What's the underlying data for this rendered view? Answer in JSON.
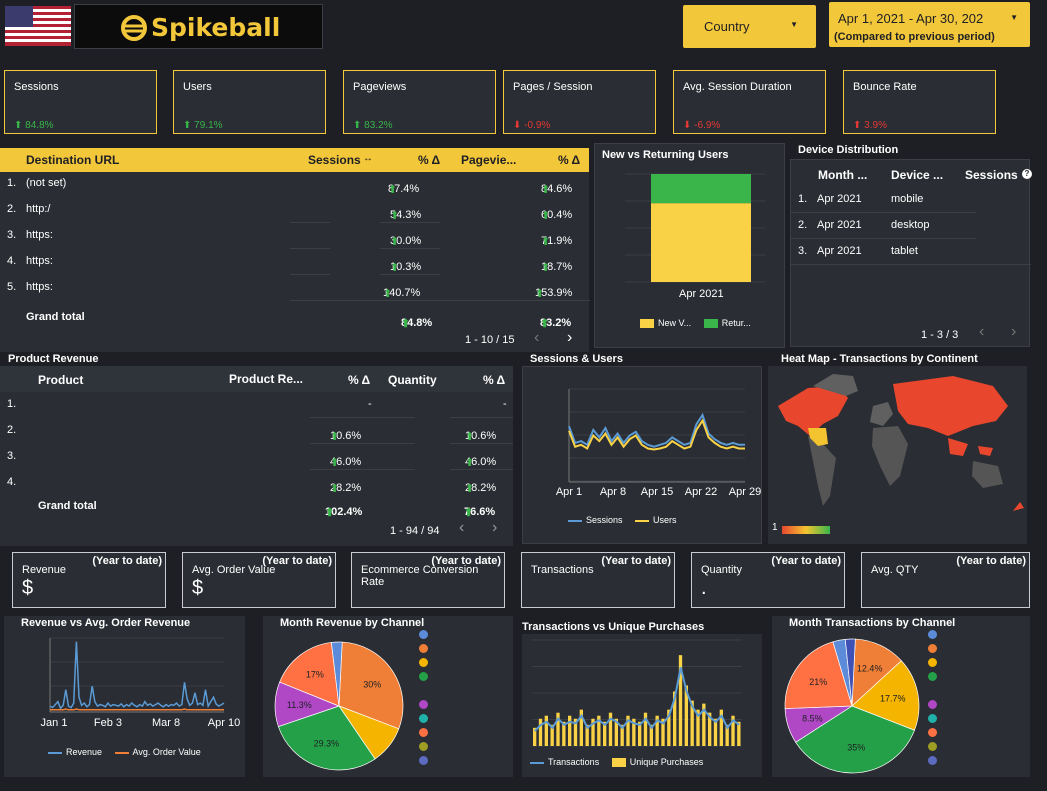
{
  "header": {
    "brand": "Spikeball",
    "country_dropdown": "Country",
    "date_range": "Apr 1, 2021 - Apr 30, 202",
    "date_compare": "(Compared to previous period)"
  },
  "kpis": [
    {
      "label": "Sessions",
      "delta": "84.8%",
      "dir": "up"
    },
    {
      "label": "Users",
      "delta": "79.1%",
      "dir": "up"
    },
    {
      "label": "Pageviews",
      "delta": "83.2%",
      "dir": "up"
    },
    {
      "label": "Pages / Session",
      "delta": "-0.9%",
      "dir": "down"
    },
    {
      "label": "Avg. Session Duration",
      "delta": "-6.9%",
      "dir": "down"
    },
    {
      "label": "Bounce Rate",
      "delta": "3.9%",
      "dir": "down"
    }
  ],
  "destination_table": {
    "headers": [
      "Destination URL",
      "Sessions",
      "% Δ",
      "Pagevie...",
      "% Δ"
    ],
    "rows": [
      {
        "n": "1.",
        "url": "(not set)",
        "d1": "87.4%",
        "d2": "84.6%"
      },
      {
        "n": "2.",
        "url": "http:/",
        "d1": "54.3%",
        "d2": "60.4%"
      },
      {
        "n": "3.",
        "url": "https:",
        "d1": "30.0%",
        "d2": "71.9%"
      },
      {
        "n": "4.",
        "url": "https:",
        "d1": "10.3%",
        "d2": "18.7%"
      },
      {
        "n": "5.",
        "url": "https:",
        "d1": "140.7%",
        "d2": "153.9%"
      }
    ],
    "grand_total_label": "Grand total",
    "grand_total_d1": "84.8%",
    "grand_total_d2": "83.2%",
    "pager": "1 - 10 / 15"
  },
  "new_vs_returning": {
    "title": "New vs Returning Users",
    "x_label": "Apr 2021",
    "legend": [
      "New V...",
      "Retur..."
    ]
  },
  "device_distribution": {
    "title": "Device Distribution",
    "headers": [
      "Month ...",
      "Device ...",
      "Sessions"
    ],
    "rows": [
      {
        "n": "1.",
        "month": "Apr 2021",
        "device": "mobile"
      },
      {
        "n": "2.",
        "month": "Apr 2021",
        "device": "desktop"
      },
      {
        "n": "3.",
        "month": "Apr 2021",
        "device": "tablet"
      }
    ],
    "pager": "1 - 3 / 3"
  },
  "product_revenue": {
    "title": "Product Revenue",
    "headers": [
      "Product",
      "Product Re...",
      "% Δ",
      "Quantity",
      "% Δ"
    ],
    "rows": [
      {
        "n": "1.",
        "d1": "-",
        "d2": "-"
      },
      {
        "n": "2.",
        "d1": "10.6%",
        "d2": "10.6%"
      },
      {
        "n": "3.",
        "d1": "46.0%",
        "d2": "46.0%"
      },
      {
        "n": "4.",
        "d1": "28.2%",
        "d2": "28.2%"
      }
    ],
    "grand_total_label": "Grand total",
    "grand_total_d1": "102.4%",
    "grand_total_d2": "76.6%",
    "pager": "1 - 94 / 94"
  },
  "sessions_users": {
    "title": "Sessions & Users",
    "legend": [
      "Sessions",
      "Users"
    ]
  },
  "heatmap": {
    "title": "Heat Map - Transactions by Continent",
    "scale_min": "1"
  },
  "ytd_cards": [
    {
      "label": "Revenue",
      "tag": "(Year to date)",
      "value": "$"
    },
    {
      "label": "Avg. Order Value",
      "tag": "(Year to date)",
      "value": "$"
    },
    {
      "label": "Ecommerce Conversion Rate",
      "tag": "(Year to date)",
      "value": ""
    },
    {
      "label": "Transactions",
      "tag": "(Year to date)",
      "value": ""
    },
    {
      "label": "Quantity",
      "tag": "(Year to date)",
      "value": "."
    },
    {
      "label": "Avg. QTY",
      "tag": "(Year to date)",
      "value": ""
    }
  ],
  "revenue_chart": {
    "title": "Revenue vs Avg. Order Revenue",
    "legend": [
      "Revenue",
      "Avg. Order Value"
    ]
  },
  "month_revenue_pie": {
    "title": "Month Revenue by Channel"
  },
  "transactions_chart": {
    "title": "Transactions vs Unique Purchases",
    "legend": [
      "Transactions",
      "Unique Purchases"
    ]
  },
  "month_transactions_pie": {
    "title": "Month Transactions by Channel"
  },
  "colors": {
    "accent": "#f3c73a",
    "panel": "#2a2d33",
    "positive": "#39b54a",
    "negative": "#e53935"
  },
  "chart_data": [
    {
      "type": "bar",
      "categories": [
        "Apr 2021"
      ],
      "series": [
        {
          "name": "New V...",
          "values": [
            73
          ]
        },
        {
          "name": "Retur...",
          "values": [
            27
          ]
        }
      ],
      "stacked": true
    },
    {
      "type": "line",
      "x_ticks": [
        "Apr 1",
        "Apr 8",
        "Apr 15",
        "Apr 22",
        "Apr 29"
      ],
      "series": [
        {
          "name": "Sessions",
          "values": [
            60,
            42,
            44,
            40,
            56,
            48,
            58,
            44,
            52,
            42,
            50,
            54,
            44,
            40,
            38,
            40,
            42,
            48,
            44,
            40,
            42,
            62,
            72,
            52,
            46,
            42,
            40,
            42,
            40,
            40
          ]
        },
        {
          "name": "Users",
          "values": [
            55,
            38,
            40,
            36,
            50,
            44,
            52,
            40,
            48,
            38,
            46,
            50,
            40,
            36,
            35,
            36,
            38,
            44,
            40,
            36,
            38,
            56,
            66,
            48,
            42,
            38,
            36,
            38,
            36,
            36
          ]
        }
      ],
      "ylim": [
        0,
        100
      ]
    },
    {
      "type": "line",
      "x_ticks": [
        "Jan 1",
        "Feb 3",
        "Mar 8",
        "Apr 10"
      ],
      "series": [
        {
          "name": "Revenue",
          "values": [
            8,
            6,
            10,
            14,
            5,
            9,
            30,
            8,
            6,
            12,
            95,
            20,
            9,
            12,
            7,
            10,
            35,
            14,
            8,
            10,
            9,
            7,
            12,
            8,
            10,
            9,
            8,
            11,
            7,
            10,
            8,
            12,
            9,
            7,
            10,
            8,
            14,
            9,
            11,
            8,
            10,
            12,
            9,
            7,
            10,
            8,
            10,
            9,
            12,
            8,
            10,
            40,
            18,
            9,
            12,
            26,
            10,
            12,
            9,
            30,
            8,
            14,
            20,
            11,
            8,
            10,
            12
          ]
        },
        {
          "name": "Avg. Order Value",
          "values": [
            3,
            3,
            3,
            3,
            3,
            3,
            4,
            3,
            3,
            3,
            4,
            3,
            3,
            3,
            3,
            3,
            3,
            3,
            3,
            3,
            3,
            3,
            3,
            3,
            3,
            3,
            3,
            3,
            3,
            3,
            3,
            3,
            3,
            3,
            3,
            3,
            3,
            3,
            3,
            3,
            3,
            3,
            3,
            3,
            3,
            3,
            3,
            3,
            3,
            3,
            3,
            4,
            3,
            3,
            3,
            3,
            3,
            3,
            3,
            3,
            3,
            3,
            3,
            3,
            3,
            3,
            3
          ]
        }
      ],
      "ylim": [
        0,
        100
      ]
    },
    {
      "type": "pie",
      "slices": [
        {
          "label": "30%",
          "value": 30,
          "color": "#ef7f36"
        },
        {
          "label": "",
          "value": 9.7,
          "color": "#f4b400"
        },
        {
          "label": "29.3%",
          "value": 29.3,
          "color": "#24a148"
        },
        {
          "label": "11.3%",
          "value": 11.3,
          "color": "#b048c6"
        },
        {
          "label": "17%",
          "value": 17,
          "color": "#ff7043"
        },
        {
          "label": "",
          "value": 2.7,
          "color": "#5b8bd9"
        }
      ]
    },
    {
      "type": "bar",
      "series": [
        {
          "name": "Unique Purchases",
          "values": [
            12,
            18,
            20,
            14,
            22,
            16,
            20,
            18,
            24,
            14,
            18,
            20,
            16,
            22,
            18,
            14,
            20,
            18,
            16,
            22,
            14,
            20,
            18,
            24,
            36,
            60,
            40,
            30,
            24,
            28,
            22,
            18,
            24,
            14,
            20,
            16
          ]
        },
        {
          "name": "Transactions",
          "values": [
            10,
            14,
            16,
            12,
            18,
            14,
            16,
            15,
            20,
            12,
            15,
            17,
            14,
            18,
            16,
            12,
            17,
            15,
            14,
            18,
            12,
            17,
            15,
            20,
            32,
            52,
            36,
            26,
            20,
            24,
            19,
            16,
            20,
            12,
            17,
            14
          ]
        }
      ],
      "ylim": [
        0,
        70
      ]
    },
    {
      "type": "pie",
      "slices": [
        {
          "label": "12.4%",
          "value": 12.4,
          "color": "#ef7f36"
        },
        {
          "label": "17.7%",
          "value": 17.7,
          "color": "#f4b400"
        },
        {
          "label": "35%",
          "value": 35,
          "color": "#24a148"
        },
        {
          "label": "8.5%",
          "value": 8.5,
          "color": "#b048c6"
        },
        {
          "label": "21%",
          "value": 21,
          "color": "#ff7043"
        },
        {
          "label": "",
          "value": 3,
          "color": "#5b8bd9"
        },
        {
          "label": "",
          "value": 2.4,
          "color": "#3f51b5"
        }
      ]
    }
  ]
}
